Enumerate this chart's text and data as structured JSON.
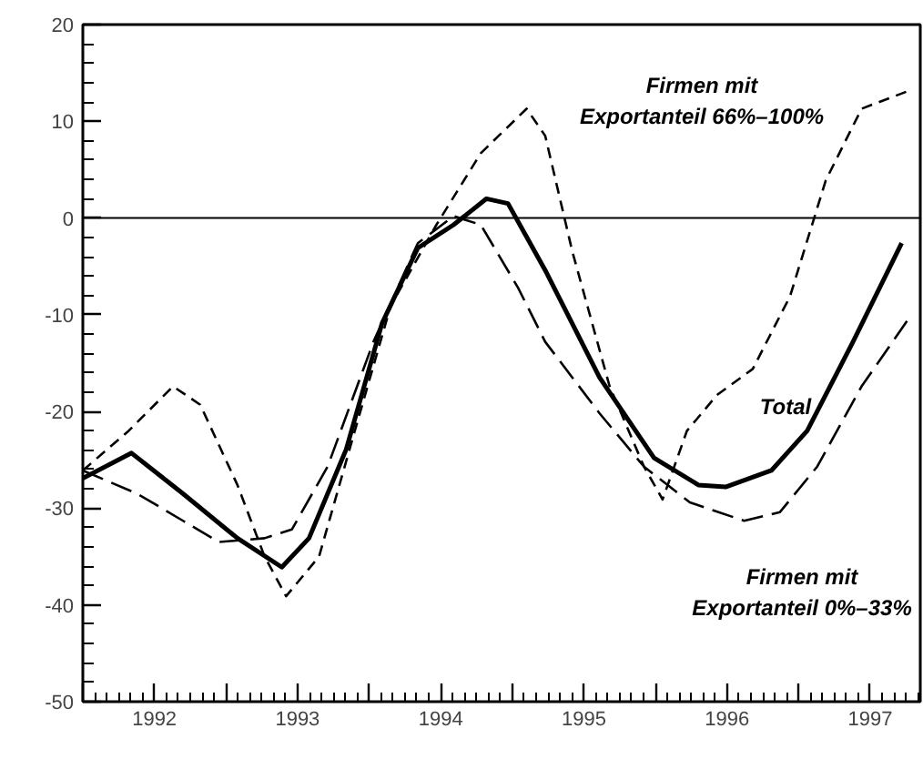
{
  "chart_data": {
    "type": "line",
    "x": [
      1992.0,
      1992.34,
      1992.7,
      1993.08,
      1993.39,
      1993.58,
      1993.84,
      1994.09,
      1994.34,
      1994.59,
      1994.82,
      1994.97,
      1995.23,
      1995.61,
      1995.99,
      1996.3,
      1996.49,
      1996.81,
      1997.06,
      1997.38,
      1997.72
    ],
    "series": [
      {
        "name": "Total",
        "color": "#000000",
        "line_style": "solid",
        "values": [
          -26.9,
          -24.3,
          -28.5,
          -33.1,
          -36.1,
          -33.1,
          -23.9,
          -10.9,
          -3.1,
          -0.7,
          2.0,
          1.5,
          -5.4,
          -16.5,
          -24.8,
          -27.6,
          -27.8,
          -26.1,
          -22.0,
          -12.8,
          -2.6
        ]
      },
      {
        "name": "Firmen mit\nExportanteil 66%–100%",
        "color": "#000000",
        "line_style": "dashed",
        "x": [
          1992.0,
          1992.32,
          1992.63,
          1992.82,
          1993.08,
          1993.27,
          1993.42,
          1993.65,
          1993.9,
          1994.15,
          1994.47,
          1994.78,
          1995.1,
          1995.23,
          1995.42,
          1995.68,
          1995.92,
          1996.05,
          1996.22,
          1996.43,
          1996.68,
          1996.94,
          1997.19,
          1997.44,
          1997.76
        ],
        "values": [
          -26.1,
          -22.0,
          -17.4,
          -19.3,
          -27.6,
          -35.0,
          -39.1,
          -35.0,
          -22.0,
          -9.1,
          -0.7,
          6.7,
          11.3,
          8.5,
          -3.5,
          -17.4,
          -25.7,
          -29.1,
          -22.0,
          -18.3,
          -15.6,
          -8.1,
          3.9,
          11.3,
          13.1
        ]
      },
      {
        "name": "Firmen mit\nExportanteil 0%–33%",
        "color": "#000000",
        "line_style": "dashed",
        "x": [
          1992.0,
          1992.38,
          1992.7,
          1992.95,
          1993.27,
          1993.46,
          1993.71,
          1994.03,
          1994.34,
          1994.59,
          1994.78,
          1995.04,
          1995.23,
          1995.61,
          1995.92,
          1996.24,
          1996.62,
          1996.87,
          1997.13,
          1997.44,
          1997.76
        ],
        "values": [
          -26.1,
          -28.5,
          -31.3,
          -33.5,
          -33.1,
          -32.2,
          -25.7,
          -12.8,
          -2.6,
          0.2,
          -0.7,
          -7.2,
          -12.8,
          -20.2,
          -25.7,
          -29.4,
          -31.3,
          -30.4,
          -25.7,
          -17.4,
          -10.6
        ]
      }
    ],
    "xlim": [
      1992.0,
      1997.85
    ],
    "xticks": [
      {
        "value": 1992.5,
        "label": "1992"
      },
      {
        "value": 1993.5,
        "label": "1993"
      },
      {
        "value": 1994.5,
        "label": "1994"
      },
      {
        "value": 1995.5,
        "label": "1995"
      },
      {
        "value": 1996.5,
        "label": "1996"
      },
      {
        "value": 1997.5,
        "label": "1997"
      }
    ],
    "ylim": [
      -50,
      20
    ],
    "yticks": [
      -50,
      -40,
      -30,
      -20,
      -10,
      0,
      10,
      20
    ],
    "ref_lines": [
      {
        "axis": "y",
        "value": 0,
        "color": "#000000"
      }
    ],
    "grid": false,
    "legend": false
  }
}
